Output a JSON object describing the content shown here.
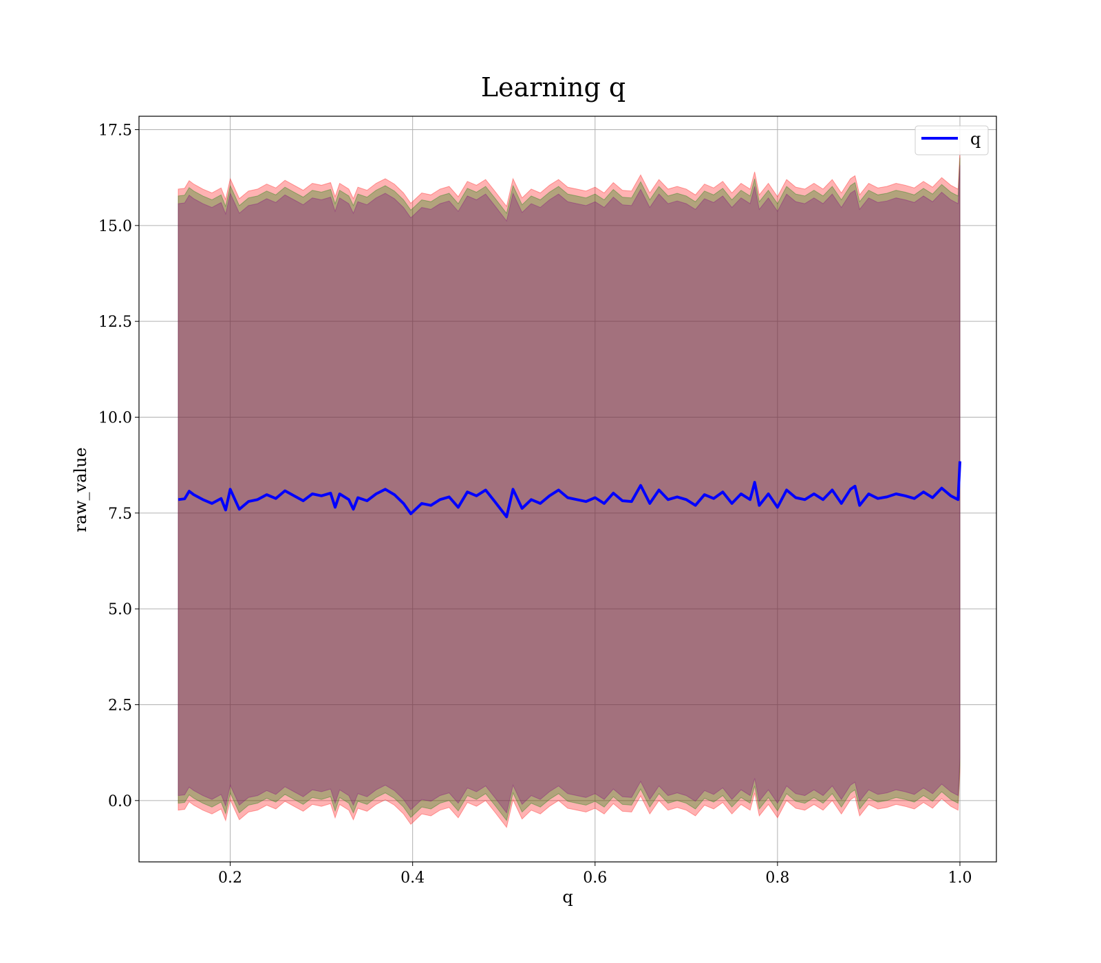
{
  "chart_data": {
    "type": "line",
    "title": "Learning q",
    "xlabel": "q",
    "ylabel": "raw_value",
    "xlim": [
      0.1,
      1.04
    ],
    "ylim": [
      -1.6,
      17.85
    ],
    "grid": true,
    "legend_placement": "top-right",
    "x_ticks": [
      "0.2",
      "0.4",
      "0.6",
      "0.8",
      "1.0"
    ],
    "y_ticks": [
      "0.0",
      "2.5",
      "5.0",
      "7.5",
      "10.0",
      "12.5",
      "15.0",
      "17.5"
    ],
    "series": [
      {
        "name": "q",
        "color": "#0000ff",
        "x": [
          0.143,
          0.15,
          0.155,
          0.16,
          0.17,
          0.18,
          0.19,
          0.195,
          0.2,
          0.21,
          0.22,
          0.23,
          0.24,
          0.25,
          0.26,
          0.27,
          0.28,
          0.29,
          0.3,
          0.31,
          0.315,
          0.32,
          0.33,
          0.335,
          0.34,
          0.35,
          0.36,
          0.37,
          0.38,
          0.39,
          0.398,
          0.41,
          0.42,
          0.43,
          0.44,
          0.45,
          0.46,
          0.47,
          0.48,
          0.49,
          0.503,
          0.51,
          0.52,
          0.53,
          0.54,
          0.55,
          0.56,
          0.57,
          0.58,
          0.59,
          0.6,
          0.61,
          0.62,
          0.63,
          0.64,
          0.65,
          0.66,
          0.67,
          0.68,
          0.69,
          0.7,
          0.71,
          0.72,
          0.73,
          0.74,
          0.75,
          0.76,
          0.77,
          0.775,
          0.78,
          0.79,
          0.8,
          0.81,
          0.82,
          0.83,
          0.84,
          0.85,
          0.86,
          0.87,
          0.88,
          0.885,
          0.89,
          0.9,
          0.91,
          0.92,
          0.93,
          0.94,
          0.95,
          0.96,
          0.97,
          0.98,
          0.99,
          0.998,
          1.0
        ],
        "values": [
          7.85,
          7.87,
          8.07,
          7.98,
          7.85,
          7.75,
          7.88,
          7.58,
          8.12,
          7.6,
          7.8,
          7.85,
          7.98,
          7.88,
          8.08,
          7.95,
          7.82,
          8.0,
          7.95,
          8.02,
          7.65,
          8.0,
          7.85,
          7.6,
          7.9,
          7.82,
          8.0,
          8.12,
          7.98,
          7.75,
          7.48,
          7.75,
          7.7,
          7.85,
          7.92,
          7.65,
          8.05,
          7.95,
          8.1,
          7.8,
          7.4,
          8.12,
          7.62,
          7.85,
          7.75,
          7.95,
          8.1,
          7.9,
          7.85,
          7.8,
          7.9,
          7.75,
          8.02,
          7.82,
          7.8,
          8.22,
          7.75,
          8.1,
          7.85,
          7.92,
          7.85,
          7.7,
          7.98,
          7.88,
          8.05,
          7.75,
          8.0,
          7.85,
          8.3,
          7.7,
          8.0,
          7.65,
          8.1,
          7.9,
          7.85,
          8.0,
          7.85,
          8.1,
          7.75,
          8.12,
          8.2,
          7.7,
          8.0,
          7.88,
          7.92,
          8.0,
          7.95,
          7.88,
          8.05,
          7.9,
          8.15,
          7.95,
          7.85,
          8.85
        ]
      }
    ],
    "bands": [
      {
        "color": "#ff0000",
        "lower_offset": -8.1,
        "upper_offset": 8.1
      },
      {
        "color": "#008000",
        "lower_offset": -7.92,
        "upper_offset": 7.92
      },
      {
        "color": "#800080",
        "lower_offset": -7.72,
        "upper_offset": 7.72
      }
    ]
  }
}
